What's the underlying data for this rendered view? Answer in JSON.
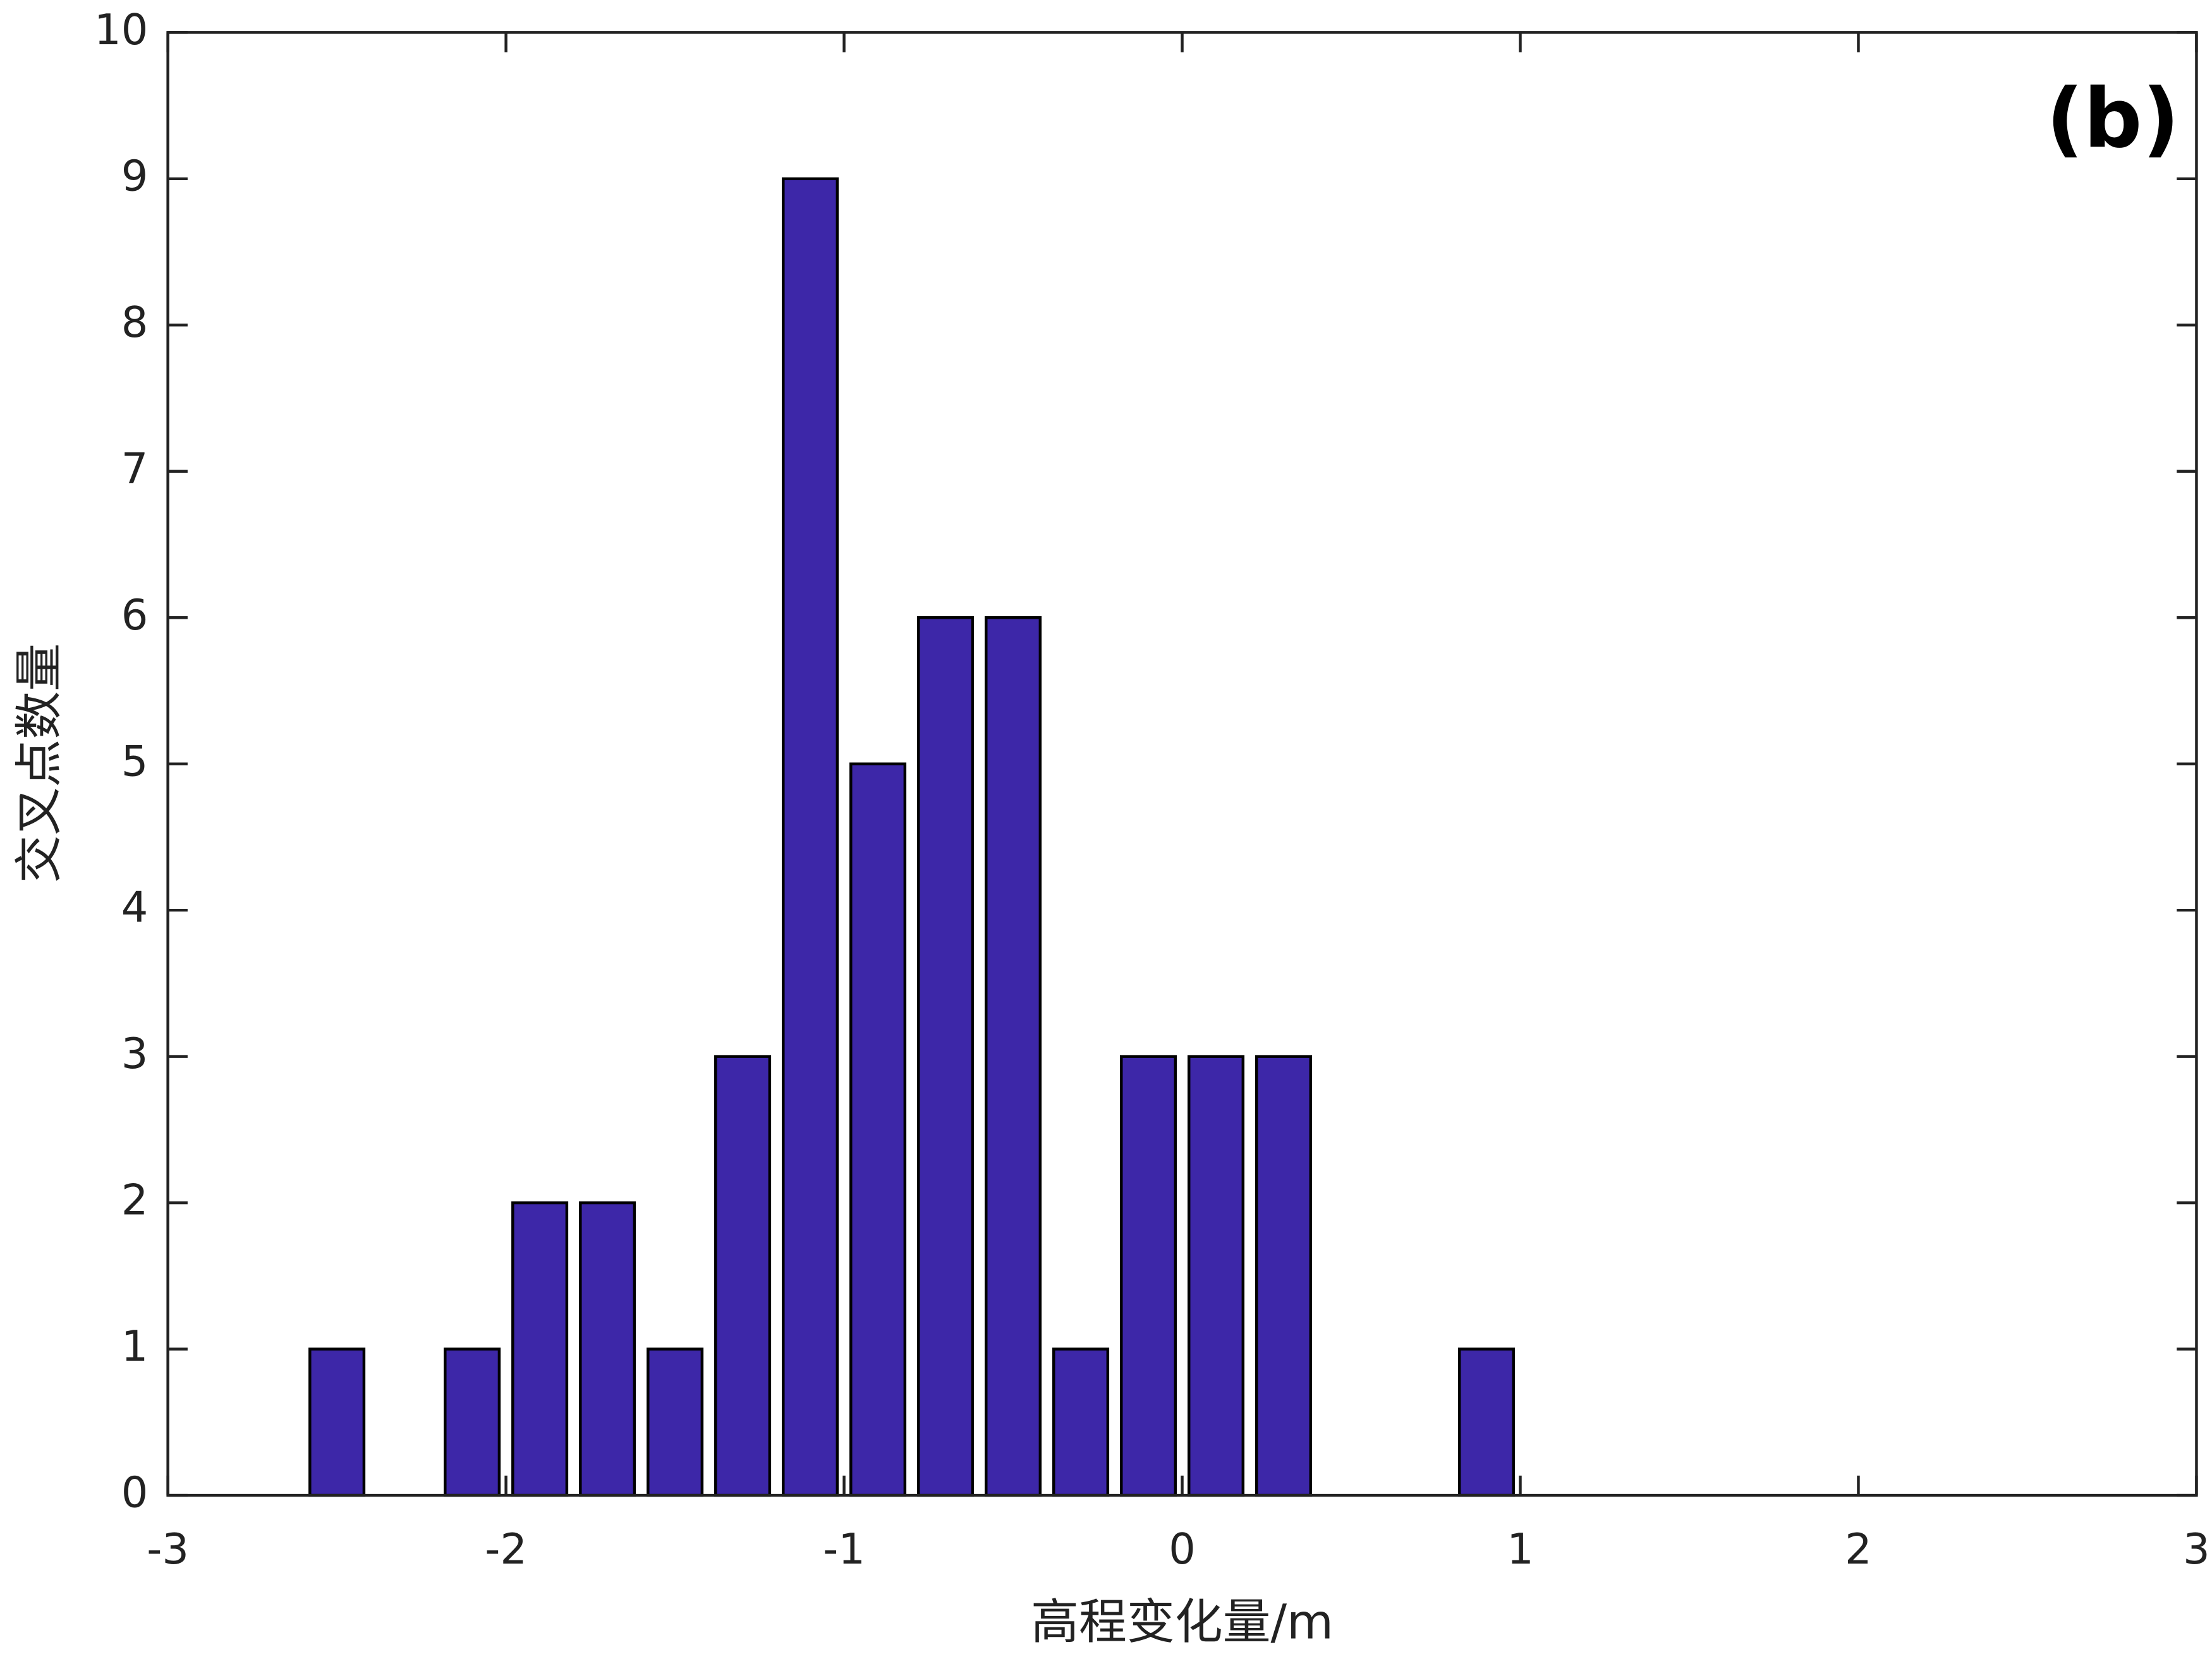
{
  "chart_data": {
    "type": "histogram",
    "annotation": "(b)",
    "x_label": "高程变化量/m",
    "y_label": "交叉点数量",
    "bins": [
      -2.6,
      -2.4,
      -2.2,
      -2.0,
      -1.8,
      -1.6,
      -1.4,
      -1.2,
      -1.0,
      -0.8,
      -0.6,
      -0.4,
      -0.2,
      0,
      0.2,
      0.4,
      0.6,
      0.8,
      1.0
    ],
    "values": [
      1,
      0,
      1,
      2,
      2,
      1,
      3,
      9,
      5,
      6,
      6,
      1,
      3,
      3,
      3,
      0,
      0,
      1
    ],
    "color": "#3d27a8",
    "xlim": [
      -3,
      3
    ],
    "xticks": [
      -3,
      -2,
      -1,
      0,
      1,
      2,
      3
    ],
    "ylim": [
      0,
      10
    ],
    "yticks": [
      0,
      1,
      2,
      3,
      4,
      5,
      6,
      7,
      8,
      9,
      10
    ]
  }
}
